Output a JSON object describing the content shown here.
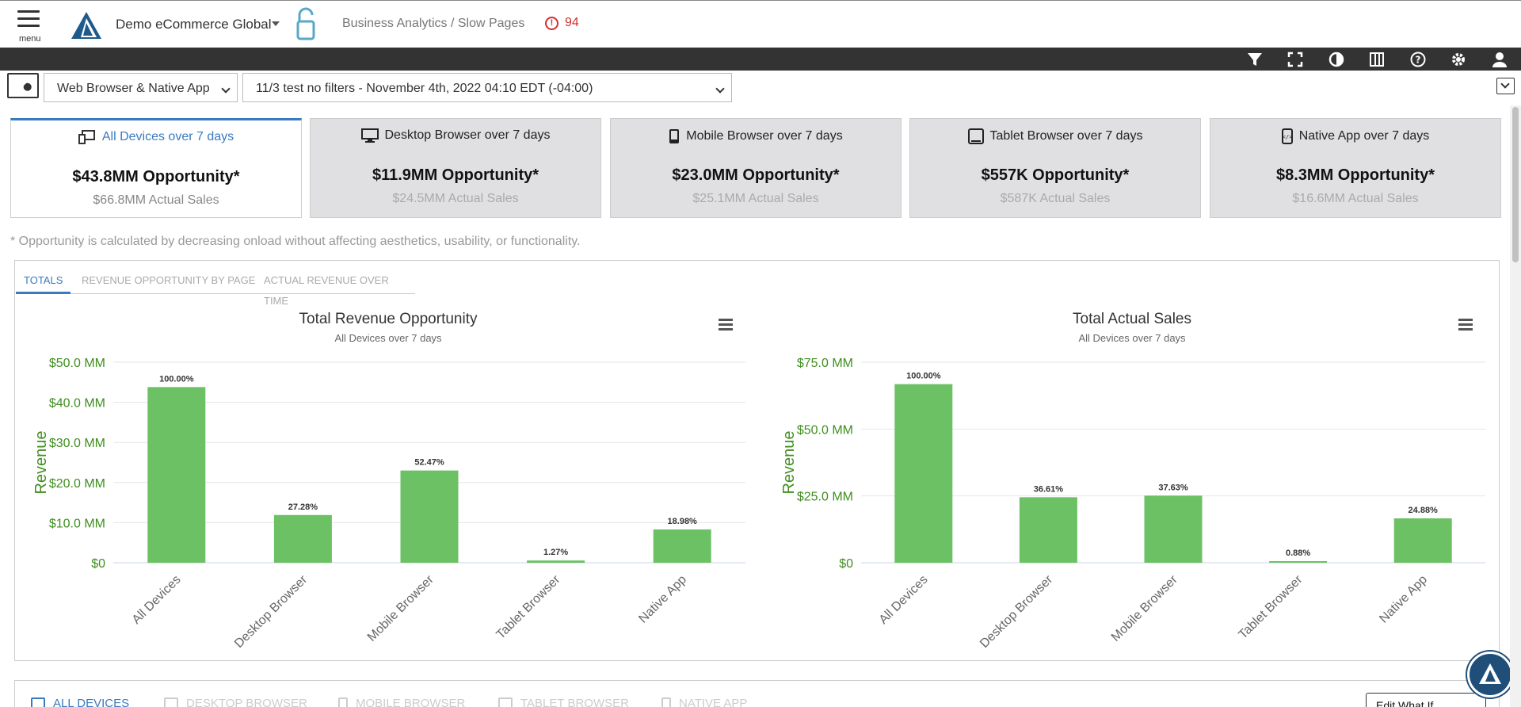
{
  "header": {
    "menu_label": "menu",
    "org_name": "Demo eCommerce Global",
    "breadcrumb": "Business Analytics / Slow Pages",
    "alert_count": "94"
  },
  "toolbar": {
    "icons": [
      "filter-icon",
      "fullscreen-icon",
      "contrast-icon",
      "columns-icon",
      "help-icon",
      "settings-icon",
      "user-icon"
    ]
  },
  "filters": {
    "platform": "Web Browser & Native App",
    "dataset": "11/3 test no filters - November 4th, 2022 04:10 EDT (-04:00)"
  },
  "cards": [
    {
      "title": "All Devices over 7 days",
      "opportunity": "$43.8MM Opportunity*",
      "actual": "$66.8MM Actual Sales",
      "icon": "devices-icon"
    },
    {
      "title": "Desktop Browser over 7 days",
      "opportunity": "$11.9MM Opportunity*",
      "actual": "$24.5MM Actual Sales",
      "icon": "desktop-icon"
    },
    {
      "title": "Mobile Browser over 7 days",
      "opportunity": "$23.0MM Opportunity*",
      "actual": "$25.1MM Actual Sales",
      "icon": "mobile-icon"
    },
    {
      "title": "Tablet Browser over 7 days",
      "opportunity": "$557K Opportunity*",
      "actual": "$587K Actual Sales",
      "icon": "tablet-icon"
    },
    {
      "title": "Native App over 7 days",
      "opportunity": "$8.3MM Opportunity*",
      "actual": "$16.6MM Actual Sales",
      "icon": "native-app-icon"
    }
  ],
  "footnote": "* Opportunity is calculated by decreasing onload without affecting aesthetics, usability, or functionality.",
  "tabs": [
    "TOTALS",
    "REVENUE OPPORTUNITY BY PAGE",
    "ACTUAL REVENUE OVER TIME"
  ],
  "colors": {
    "bar": "#6cc164",
    "axis_text": "#3f8f1f",
    "accent": "#3a7abf",
    "toolbar": "#333333"
  },
  "chart_data": [
    {
      "type": "bar",
      "title": "Total Revenue Opportunity",
      "subtitle": "All Devices over 7 days",
      "ylabel": "Revenue",
      "xlabel": "",
      "categories": [
        "All Devices",
        "Desktop Browser",
        "Mobile Browser",
        "Tablet Browser",
        "Native App"
      ],
      "values": [
        43.8,
        11.9,
        23.0,
        0.557,
        8.3
      ],
      "value_unit": "MM",
      "data_labels": [
        "100.00%",
        "27.28%",
        "52.47%",
        "1.27%",
        "18.98%"
      ],
      "ylim": [
        0,
        50
      ],
      "yticks": [
        0,
        10,
        20,
        30,
        40,
        50
      ],
      "ytick_labels": [
        "$0",
        "$10.0 MM",
        "$20.0 MM",
        "$30.0 MM",
        "$40.0 MM",
        "$50.0 MM"
      ],
      "grid": true
    },
    {
      "type": "bar",
      "title": "Total Actual Sales",
      "subtitle": "All Devices over 7 days",
      "ylabel": "Revenue",
      "xlabel": "",
      "categories": [
        "All Devices",
        "Desktop Browser",
        "Mobile Browser",
        "Tablet Browser",
        "Native App"
      ],
      "values": [
        66.8,
        24.5,
        25.1,
        0.587,
        16.6
      ],
      "value_unit": "MM",
      "data_labels": [
        "100.00%",
        "36.61%",
        "37.63%",
        "0.88%",
        "24.88%"
      ],
      "ylim": [
        0,
        75
      ],
      "yticks": [
        0,
        25,
        50,
        75
      ],
      "ytick_labels": [
        "$0",
        "$25.0 MM",
        "$50.0 MM",
        "$75.0 MM"
      ],
      "grid": true
    }
  ],
  "bottom_tabs": [
    "ALL DEVICES",
    "DESKTOP BROWSER",
    "MOBILE BROWSER",
    "TABLET BROWSER",
    "NATIVE APP"
  ],
  "edit_button": "Edit What If Variables"
}
